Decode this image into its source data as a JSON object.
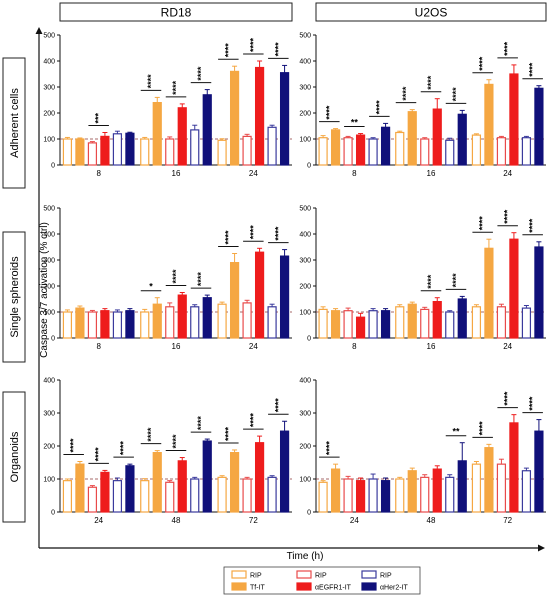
{
  "colors": {
    "tf_open": "#f5a742",
    "tf_fill": "#f5a742",
    "egfr_open": "#e84a4a",
    "egfr_fill": "#ee1c1c",
    "her2_open": "#3a3a9c",
    "her2_fill": "#10107a",
    "refline": "#8a3a3a"
  },
  "columns": [
    "RD18",
    "U2OS"
  ],
  "rows": [
    "Adherent cells",
    "Single spheroids",
    "Organoids"
  ],
  "y_axis_label": "Caspase 3/7 activation (% ctrl)",
  "x_axis_label": "Time (h)",
  "legend": [
    {
      "label": "RIP",
      "style": "tf_open"
    },
    {
      "label": "Tf-IT",
      "style": "tf_fill"
    },
    {
      "label": "RIP",
      "style": "egfr_open"
    },
    {
      "label": "αEGFR1-IT",
      "style": "egfr_fill"
    },
    {
      "label": "RIP",
      "style": "her2_open"
    },
    {
      "label": "αHer2-IT",
      "style": "her2_fill"
    }
  ],
  "chart_data": [
    {
      "type": "bar",
      "row": "Adherent cells",
      "column": "RD18",
      "ylim": [
        0,
        500
      ],
      "yticks": [
        0,
        100,
        200,
        300,
        400,
        500
      ],
      "categories": [
        "8",
        "16",
        "24"
      ],
      "series_order": [
        "RIP",
        "Tf-IT",
        "RIP",
        "αEGFR1-IT",
        "RIP",
        "αHer2-IT"
      ],
      "values": [
        [
          100,
          100,
          85,
          110,
          120,
          122
        ],
        [
          100,
          240,
          100,
          220,
          135,
          270
        ],
        [
          95,
          360,
          110,
          375,
          145,
          355
        ]
      ],
      "errors": [
        [
          6,
          4,
          5,
          15,
          10,
          4
        ],
        [
          6,
          20,
          8,
          15,
          18,
          20
        ],
        [
          6,
          20,
          8,
          25,
          8,
          28
        ]
      ],
      "sig": [
        [
          {
            "p": "***",
            "b": [
              2,
              3
            ]
          }
        ],
        [
          {
            "p": "****",
            "b": [
              0,
              1
            ]
          },
          {
            "p": "****",
            "b": [
              2,
              3
            ]
          },
          {
            "p": "****",
            "b": [
              4,
              5
            ]
          }
        ],
        [
          {
            "p": "****",
            "b": [
              0,
              1
            ]
          },
          {
            "p": "****",
            "b": [
              2,
              3
            ]
          },
          {
            "p": "****",
            "b": [
              4,
              5
            ]
          }
        ]
      ]
    },
    {
      "type": "bar",
      "row": "Adherent cells",
      "column": "U2OS",
      "ylim": [
        0,
        500
      ],
      "yticks": [
        0,
        100,
        200,
        300,
        400,
        500
      ],
      "categories": [
        "8",
        "16",
        "24"
      ],
      "series_order": [
        "RIP",
        "Tf-IT",
        "RIP",
        "αEGFR1-IT",
        "RIP",
        "αHer2-IT"
      ],
      "values": [
        [
          105,
          135,
          105,
          115,
          100,
          145
        ],
        [
          125,
          205,
          100,
          215,
          95,
          195
        ],
        [
          115,
          310,
          105,
          350,
          105,
          295
        ]
      ],
      "errors": [
        [
          8,
          5,
          5,
          6,
          5,
          15
        ],
        [
          5,
          8,
          5,
          40,
          8,
          15
        ],
        [
          5,
          18,
          5,
          35,
          5,
          10
        ]
      ],
      "sig": [
        [
          {
            "p": "****",
            "b": [
              0,
              1
            ]
          },
          {
            "p": "**",
            "b": [
              2,
              3
            ]
          },
          {
            "p": "****",
            "b": [
              4,
              5
            ]
          }
        ],
        [
          {
            "p": "****",
            "b": [
              0,
              1
            ]
          },
          {
            "p": "****",
            "b": [
              2,
              3
            ]
          },
          {
            "p": "****",
            "b": [
              4,
              5
            ]
          }
        ],
        [
          {
            "p": "****",
            "b": [
              0,
              1
            ]
          },
          {
            "p": "****",
            "b": [
              2,
              3
            ]
          },
          {
            "p": "****",
            "b": [
              4,
              5
            ]
          }
        ]
      ]
    },
    {
      "type": "bar",
      "row": "Single spheroids",
      "column": "RD18",
      "ylim": [
        0,
        500
      ],
      "yticks": [
        0,
        100,
        200,
        300,
        400,
        500
      ],
      "categories": [
        "8",
        "16",
        "24"
      ],
      "series_order": [
        "RIP",
        "Tf-IT",
        "RIP",
        "αEGFR1-IT",
        "RIP",
        "αHer2-IT"
      ],
      "values": [
        [
          100,
          115,
          100,
          105,
          100,
          105
        ],
        [
          100,
          130,
          120,
          165,
          120,
          155
        ],
        [
          130,
          290,
          135,
          330,
          120,
          315
        ]
      ],
      "errors": [
        [
          8,
          8,
          6,
          8,
          8,
          8
        ],
        [
          10,
          25,
          15,
          10,
          8,
          10
        ],
        [
          8,
          35,
          10,
          15,
          10,
          25
        ]
      ],
      "sig": [
        [],
        [
          {
            "p": "*",
            "b": [
              0,
              1
            ]
          },
          {
            "p": "****",
            "b": [
              2,
              3
            ]
          },
          {
            "p": "****",
            "b": [
              4,
              5
            ]
          }
        ],
        [
          {
            "p": "****",
            "b": [
              0,
              1
            ]
          },
          {
            "p": "****",
            "b": [
              2,
              3
            ]
          },
          {
            "p": "****",
            "b": [
              4,
              5
            ]
          }
        ]
      ]
    },
    {
      "type": "bar",
      "row": "Single spheroids",
      "column": "U2OS",
      "ylim": [
        0,
        500
      ],
      "yticks": [
        0,
        100,
        200,
        300,
        400,
        500
      ],
      "categories": [
        "8",
        "16",
        "24"
      ],
      "series_order": [
        "RIP",
        "Tf-IT",
        "RIP",
        "αEGFR1-IT",
        "RIP",
        "αHer2-IT"
      ],
      "values": [
        [
          110,
          105,
          105,
          80,
          105,
          105
        ],
        [
          120,
          130,
          110,
          140,
          100,
          150
        ],
        [
          120,
          345,
          120,
          380,
          115,
          350
        ]
      ],
      "errors": [
        [
          10,
          8,
          10,
          15,
          8,
          8
        ],
        [
          8,
          8,
          8,
          15,
          5,
          10
        ],
        [
          8,
          35,
          10,
          25,
          10,
          20
        ]
      ],
      "sig": [
        [],
        [
          {
            "p": "****",
            "b": [
              2,
              3
            ]
          },
          {
            "p": "****",
            "b": [
              4,
              5
            ]
          }
        ],
        [
          {
            "p": "****",
            "b": [
              0,
              1
            ]
          },
          {
            "p": "****",
            "b": [
              2,
              3
            ]
          },
          {
            "p": "****",
            "b": [
              4,
              5
            ]
          }
        ]
      ]
    },
    {
      "type": "bar",
      "row": "Organoids",
      "column": "RD18",
      "ylim": [
        0,
        400
      ],
      "yticks": [
        0,
        100,
        200,
        300,
        400
      ],
      "categories": [
        "24",
        "48",
        "72"
      ],
      "series_order": [
        "RIP",
        "Tf-IT",
        "RIP",
        "αEGFR1-IT",
        "RIP",
        "αHer2-IT"
      ],
      "values": [
        [
          95,
          145,
          75,
          120,
          95,
          140
        ],
        [
          95,
          180,
          90,
          155,
          100,
          215
        ],
        [
          105,
          180,
          100,
          210,
          105,
          245
        ]
      ],
      "errors": [
        [
          5,
          8,
          5,
          6,
          8,
          5
        ],
        [
          6,
          6,
          5,
          10,
          5,
          6
        ],
        [
          5,
          8,
          5,
          20,
          5,
          30
        ]
      ],
      "sig": [
        [
          {
            "p": "****",
            "b": [
              0,
              1
            ]
          },
          {
            "p": "****",
            "b": [
              2,
              3
            ]
          },
          {
            "p": "****",
            "b": [
              4,
              5
            ]
          }
        ],
        [
          {
            "p": "****",
            "b": [
              0,
              1
            ]
          },
          {
            "p": "****",
            "b": [
              2,
              3
            ]
          },
          {
            "p": "****",
            "b": [
              4,
              5
            ]
          }
        ],
        [
          {
            "p": "****",
            "b": [
              0,
              1
            ]
          },
          {
            "p": "****",
            "b": [
              2,
              3
            ]
          },
          {
            "p": "****",
            "b": [
              4,
              5
            ]
          }
        ]
      ]
    },
    {
      "type": "bar",
      "row": "Organoids",
      "column": "U2OS",
      "ylim": [
        0,
        400
      ],
      "yticks": [
        0,
        100,
        200,
        300,
        400
      ],
      "categories": [
        "24",
        "48",
        "72"
      ],
      "series_order": [
        "RIP",
        "Tf-IT",
        "RIP",
        "αEGFR1-IT",
        "RIP",
        "αHer2-IT"
      ],
      "values": [
        [
          90,
          130,
          100,
          95,
          100,
          95
        ],
        [
          100,
          125,
          105,
          130,
          105,
          155
        ],
        [
          145,
          195,
          145,
          270,
          125,
          245
        ]
      ],
      "errors": [
        [
          5,
          15,
          8,
          8,
          15,
          8
        ],
        [
          5,
          8,
          8,
          10,
          8,
          55
        ],
        [
          8,
          10,
          15,
          25,
          8,
          35
        ]
      ],
      "sig": [
        [
          {
            "p": "****",
            "b": [
              0,
              1
            ]
          }
        ],
        [
          {
            "p": "**",
            "b": [
              4,
              5
            ]
          }
        ],
        [
          {
            "p": "****",
            "b": [
              0,
              1
            ]
          },
          {
            "p": "****",
            "b": [
              2,
              3
            ]
          },
          {
            "p": "****",
            "b": [
              4,
              5
            ]
          }
        ]
      ]
    }
  ]
}
